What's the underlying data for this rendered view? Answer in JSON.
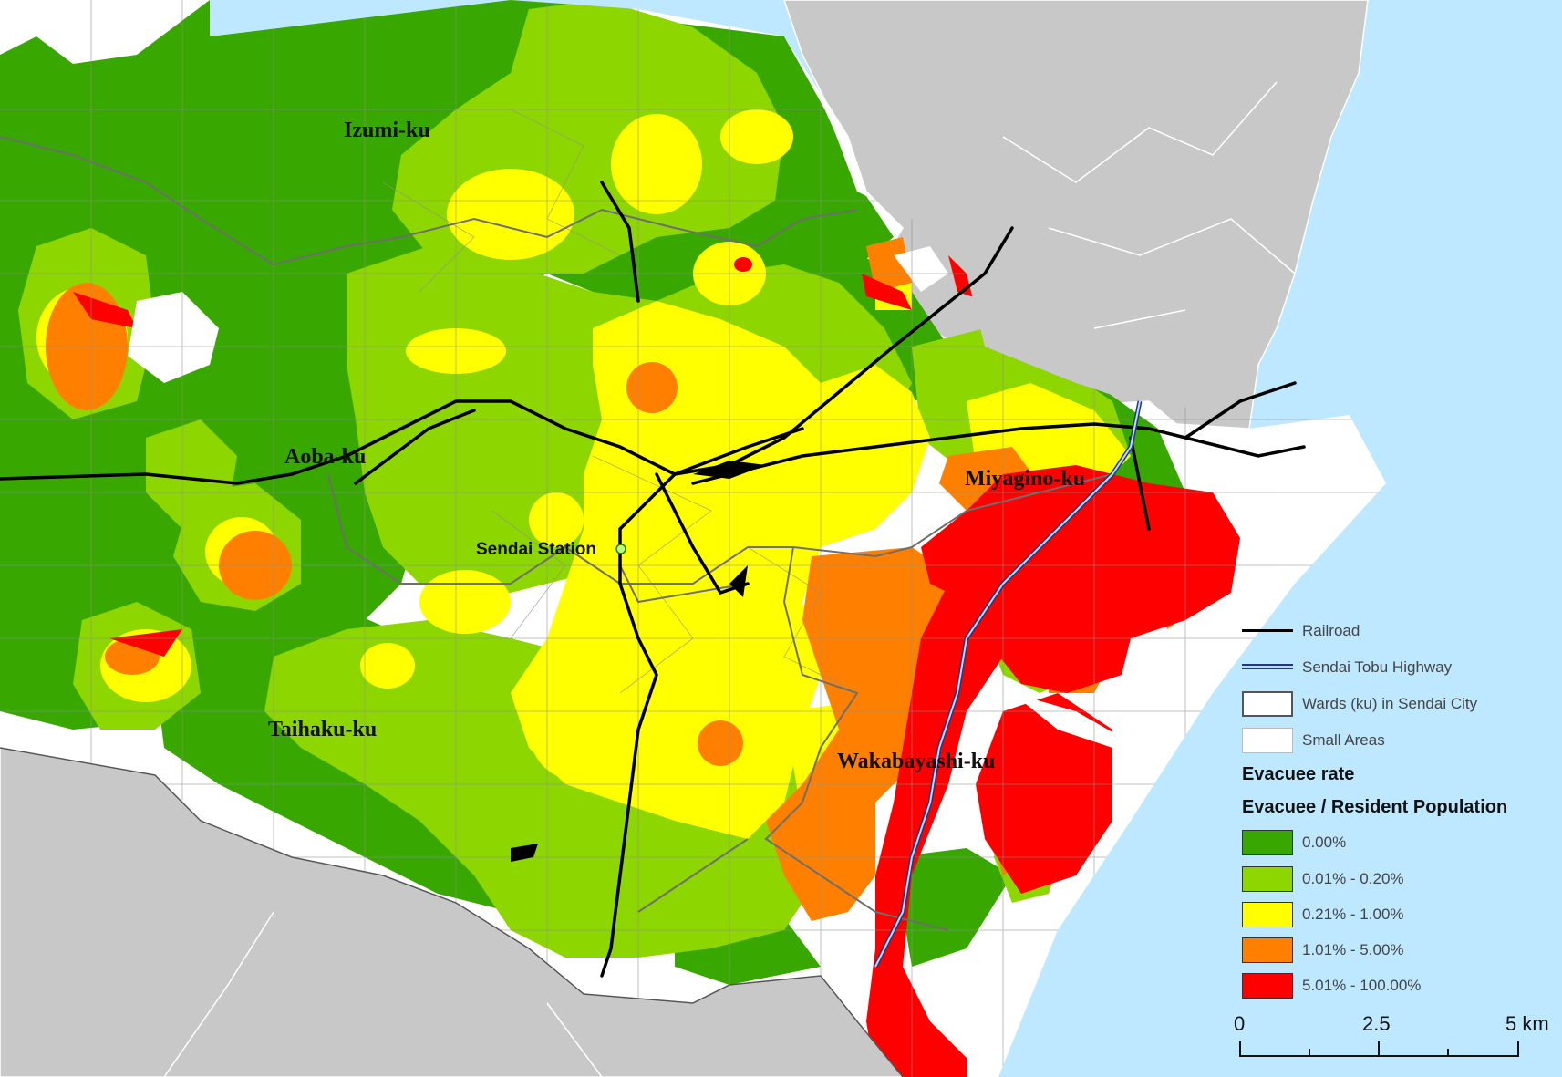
{
  "wards": [
    "Izumi-ku",
    "Aoba-ku",
    "Miyagino-ku",
    "Taihaku-ku",
    "Wakabayashi-ku"
  ],
  "station": "Sendai Station",
  "legend": {
    "items": [
      {
        "label": "Railroad"
      },
      {
        "label": "Sendai Tobu Highway"
      },
      {
        "label": "Wards (ku) in Sendai City"
      },
      {
        "label": "Small Areas"
      }
    ],
    "title": "Evacuee rate",
    "subtitle": "Evacuee / Resident Population",
    "classes": [
      {
        "label": "0.00%",
        "color": "#38a800"
      },
      {
        "label": "0.01% - 0.20%",
        "color": "#8ed600"
      },
      {
        "label": "0.21% - 1.00%",
        "color": "#ffff00"
      },
      {
        "label": "1.01% - 5.00%",
        "color": "#ff8000"
      },
      {
        "label": "5.01% - 100.00%",
        "color": "#ff0000"
      }
    ]
  },
  "scale": {
    "ticks": [
      "0",
      "2.5",
      "5 km"
    ]
  },
  "colors": {
    "sea": "#bee8ff",
    "land_outside": "#c8c8c8",
    "no_data": "#ffffff",
    "railroad": "#000000",
    "ward_border": "#6e6e6e",
    "small_area": "#8f8f8f"
  }
}
